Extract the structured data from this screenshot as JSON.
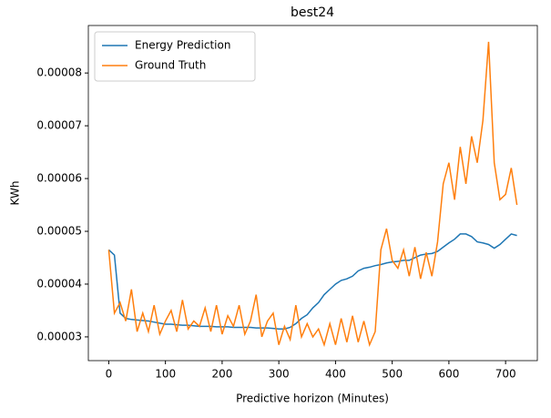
{
  "chart_data": {
    "type": "line",
    "title": "best24",
    "xlabel": "Predictive horizon (Minutes)",
    "ylabel": "KWh",
    "x": [
      0,
      10,
      20,
      30,
      40,
      50,
      60,
      70,
      80,
      90,
      100,
      110,
      120,
      130,
      140,
      150,
      160,
      170,
      180,
      190,
      200,
      210,
      220,
      230,
      240,
      250,
      260,
      270,
      280,
      290,
      300,
      310,
      320,
      330,
      340,
      350,
      360,
      370,
      380,
      390,
      400,
      410,
      420,
      430,
      440,
      450,
      460,
      470,
      480,
      490,
      500,
      510,
      520,
      530,
      540,
      550,
      560,
      570,
      580,
      590,
      600,
      610,
      620,
      630,
      640,
      650,
      660,
      670,
      680,
      690,
      700,
      710,
      720
    ],
    "series": [
      {
        "name": "Energy Prediction",
        "color": "#1f77b4",
        "values": [
          4.65e-05,
          4.55e-05,
          3.45e-05,
          3.35e-05,
          3.33e-05,
          3.32e-05,
          3.31e-05,
          3.3e-05,
          3.28e-05,
          3.26e-05,
          3.24e-05,
          3.24e-05,
          3.23e-05,
          3.22e-05,
          3.22e-05,
          3.21e-05,
          3.2e-05,
          3.2e-05,
          3.2e-05,
          3.19e-05,
          3.19e-05,
          3.19e-05,
          3.18e-05,
          3.18e-05,
          3.18e-05,
          3.18e-05,
          3.17e-05,
          3.17e-05,
          3.17e-05,
          3.16e-05,
          3.15e-05,
          3.15e-05,
          3.18e-05,
          3.25e-05,
          3.35e-05,
          3.42e-05,
          3.55e-05,
          3.65e-05,
          3.8e-05,
          3.9e-05,
          4e-05,
          4.07e-05,
          4.1e-05,
          4.15e-05,
          4.25e-05,
          4.3e-05,
          4.32e-05,
          4.35e-05,
          4.37e-05,
          4.4e-05,
          4.42e-05,
          4.43e-05,
          4.45e-05,
          4.45e-05,
          4.5e-05,
          4.55e-05,
          4.57e-05,
          4.58e-05,
          4.62e-05,
          4.7e-05,
          4.78e-05,
          4.85e-05,
          4.95e-05,
          4.95e-05,
          4.9e-05,
          4.8e-05,
          4.78e-05,
          4.75e-05,
          4.68e-05,
          4.75e-05,
          4.85e-05,
          4.95e-05,
          4.92e-05
        ]
      },
      {
        "name": "Ground Truth",
        "color": "#ff7f0e",
        "values": [
          4.65e-05,
          3.45e-05,
          3.65e-05,
          3.3e-05,
          3.9e-05,
          3.1e-05,
          3.45e-05,
          3.1e-05,
          3.6e-05,
          3.05e-05,
          3.3e-05,
          3.5e-05,
          3.1e-05,
          3.7e-05,
          3.15e-05,
          3.3e-05,
          3.2e-05,
          3.55e-05,
          3.1e-05,
          3.6e-05,
          3.05e-05,
          3.4e-05,
          3.2e-05,
          3.6e-05,
          3.05e-05,
          3.3e-05,
          3.8e-05,
          3e-05,
          3.3e-05,
          3.45e-05,
          2.85e-05,
          3.2e-05,
          2.95e-05,
          3.6e-05,
          3e-05,
          3.25e-05,
          3e-05,
          3.15e-05,
          2.85e-05,
          3.25e-05,
          2.85e-05,
          3.35e-05,
          2.9e-05,
          3.4e-05,
          2.9e-05,
          3.3e-05,
          2.85e-05,
          3.1e-05,
          4.65e-05,
          5.05e-05,
          4.45e-05,
          4.3e-05,
          4.65e-05,
          4.15e-05,
          4.7e-05,
          4.1e-05,
          4.6e-05,
          4.15e-05,
          4.8e-05,
          5.9e-05,
          6.3e-05,
          5.6e-05,
          6.6e-05,
          5.9e-05,
          6.8e-05,
          6.3e-05,
          7.1e-05,
          8.59e-05,
          6.3e-05,
          5.6e-05,
          5.7e-05,
          6.2e-05,
          5.5e-05
        ]
      }
    ],
    "xlim": [
      -36,
      756
    ],
    "ylim": [
      2.55e-05,
      8.9e-05
    ],
    "xticks": [
      0,
      100,
      200,
      300,
      400,
      500,
      600,
      700
    ],
    "yticks": [
      3e-05,
      4e-05,
      5e-05,
      6e-05,
      7e-05,
      8e-05
    ],
    "legend": "upper left"
  }
}
